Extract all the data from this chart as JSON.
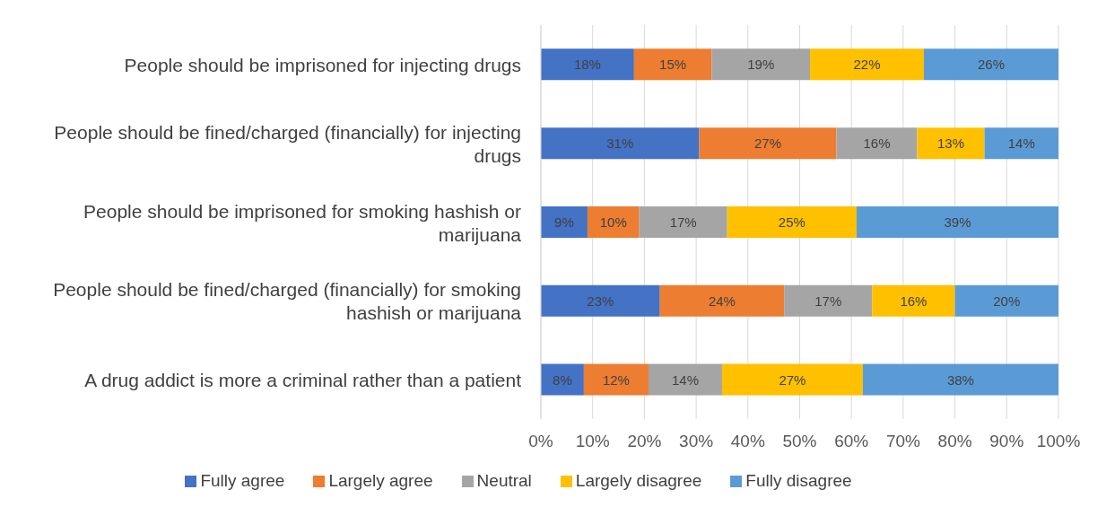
{
  "chart_data": {
    "type": "bar",
    "orientation": "horizontal",
    "stacked": true,
    "categories": [
      "People should be imprisoned for injecting drugs",
      "People should be fined/charged (financially) for injecting drugs",
      "People should be imprisoned for smoking hashish or marijuana",
      "People should be fined/charged (financially) for smoking hashish or marijuana",
      "A drug addict is more a criminal rather than a patient"
    ],
    "series": [
      {
        "name": "Fully agree",
        "color": "#4472c4",
        "values": [
          18,
          30.6,
          9,
          23,
          8.3
        ],
        "value_labels": [
          "18%",
          "31%",
          "9%",
          "23%",
          "8%"
        ]
      },
      {
        "name": "Largely agree",
        "color": "#ed7d31",
        "values": [
          15,
          26.5,
          10,
          24,
          12.5
        ],
        "value_labels": [
          "15%",
          "27%",
          "10%",
          "24%",
          "12%"
        ]
      },
      {
        "name": "Neutral",
        "color": "#a5a5a5",
        "values": [
          19,
          15.6,
          17,
          17,
          14.2
        ],
        "value_labels": [
          "19%",
          "16%",
          "17%",
          "17%",
          "14%"
        ]
      },
      {
        "name": "Largely disagree",
        "color": "#ffc000",
        "values": [
          22,
          13,
          25,
          16,
          27.2
        ],
        "value_labels": [
          "22%",
          "13%",
          "25%",
          "16%",
          "27%"
        ]
      },
      {
        "name": "Fully disagree",
        "color": "#5b9bd5",
        "values": [
          26,
          14.3,
          39,
          20,
          37.8
        ],
        "value_labels": [
          "26%",
          "14%",
          "39%",
          "20%",
          "38%"
        ]
      }
    ],
    "xlim": [
      0,
      100
    ],
    "xticks": [
      {
        "value": 0,
        "label": "0%"
      },
      {
        "value": 10,
        "label": "10%"
      },
      {
        "value": 20,
        "label": "20%"
      },
      {
        "value": 30,
        "label": "30%"
      },
      {
        "value": 40,
        "label": "40%"
      },
      {
        "value": 50,
        "label": "50%"
      },
      {
        "value": 60,
        "label": "60%"
      },
      {
        "value": 70,
        "label": "70%"
      },
      {
        "value": 80,
        "label": "80%"
      },
      {
        "value": 90,
        "label": "90%"
      },
      {
        "value": 100,
        "label": "100%"
      }
    ],
    "grid": "x",
    "legend": "bottom"
  }
}
